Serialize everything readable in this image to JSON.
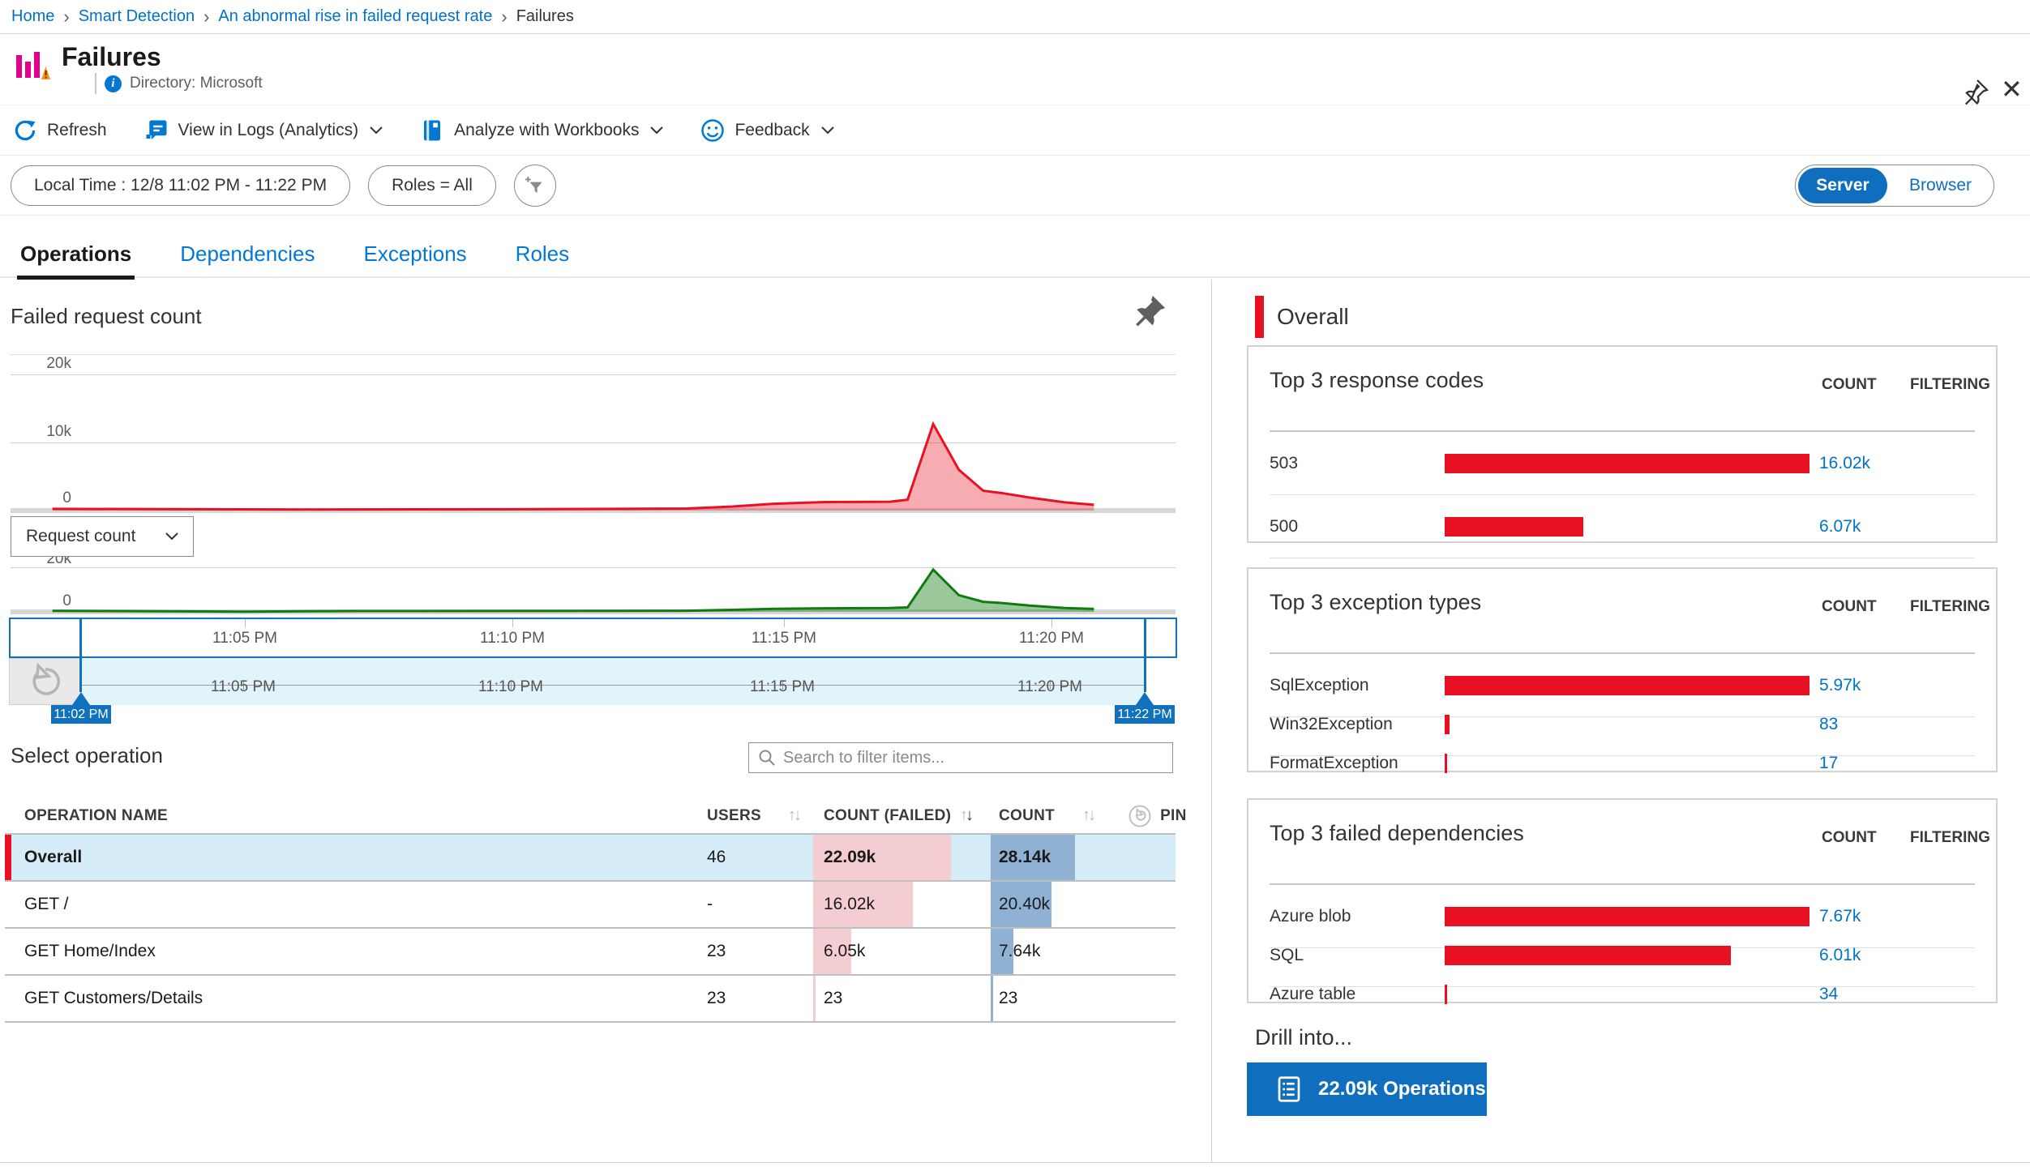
{
  "breadcrumb": {
    "items": [
      {
        "label": "Home"
      },
      {
        "label": "Smart Detection"
      },
      {
        "label": "An abnormal rise in failed request rate"
      },
      {
        "label": "Failures"
      }
    ]
  },
  "header": {
    "title": "Failures",
    "subtitle": "Directory: Microsoft"
  },
  "toolbar": {
    "refresh": "Refresh",
    "view_logs": "View in Logs (Analytics)",
    "workbooks": "Analyze with Workbooks",
    "feedback": "Feedback"
  },
  "filters": {
    "time": "Local Time : 12/8 11:02 PM - 11:22 PM",
    "roles": "Roles = All"
  },
  "scope_toggle": {
    "server": "Server",
    "browser": "Browser",
    "selected": "Server"
  },
  "tabs": [
    {
      "label": "Operations"
    },
    {
      "label": "Dependencies"
    },
    {
      "label": "Exceptions"
    },
    {
      "label": "Roles"
    }
  ],
  "charts": {
    "failed_title": "Failed request count",
    "metric_dropdown": "Request count",
    "y_top": "20k",
    "y_mid": "10k",
    "y_zero": "0",
    "time_axis": [
      "11:05 PM",
      "11:10 PM",
      "11:15 PM",
      "11:20 PM"
    ],
    "brush": {
      "start": "11:02 PM",
      "end": "11:22 PM"
    }
  },
  "chart_data": [
    {
      "type": "area",
      "name": "Failed request count",
      "color": "#e81123",
      "fill": "rgba(232,17,35,0.35)",
      "x_range": [
        "11:02 PM",
        "11:22 PM"
      ],
      "ylim": [
        0,
        25000
      ],
      "points": [
        [
          0.036,
          250
        ],
        [
          0.25,
          150
        ],
        [
          0.45,
          200
        ],
        [
          0.58,
          300
        ],
        [
          0.62,
          600
        ],
        [
          0.655,
          1000
        ],
        [
          0.7,
          1250
        ],
        [
          0.755,
          1300
        ],
        [
          0.77,
          1600
        ],
        [
          0.792,
          12700
        ],
        [
          0.814,
          6000
        ],
        [
          0.835,
          2900
        ],
        [
          0.85,
          2600
        ],
        [
          0.875,
          1900
        ],
        [
          0.905,
          1200
        ],
        [
          0.93,
          850
        ]
      ]
    },
    {
      "type": "area",
      "name": "Request count",
      "color": "#107c10",
      "fill": "rgba(16,124,16,0.42)",
      "x_range": [
        "11:02 PM",
        "11:22 PM"
      ],
      "ylim": [
        0,
        22000
      ],
      "points": [
        [
          0.036,
          450
        ],
        [
          0.2,
          120
        ],
        [
          0.3,
          350
        ],
        [
          0.45,
          400
        ],
        [
          0.58,
          500
        ],
        [
          0.62,
          900
        ],
        [
          0.655,
          1400
        ],
        [
          0.7,
          1600
        ],
        [
          0.755,
          1700
        ],
        [
          0.77,
          2000
        ],
        [
          0.792,
          19000
        ],
        [
          0.814,
          7500
        ],
        [
          0.835,
          4500
        ],
        [
          0.85,
          4000
        ],
        [
          0.875,
          2800
        ],
        [
          0.905,
          1700
        ],
        [
          0.93,
          1300
        ]
      ]
    }
  ],
  "operations": {
    "section_title": "Select operation",
    "search_placeholder": "Search to filter items...",
    "columns": {
      "name": "OPERATION NAME",
      "users": "USERS",
      "failed": "COUNT (FAILED)",
      "count": "COUNT",
      "pin": "PIN"
    },
    "failed_max": 22090,
    "count_max": 28140,
    "rows": [
      {
        "name": "Overall",
        "users": "46",
        "failed": "22.09k",
        "failed_value": 22090,
        "count": "28.14k",
        "count_value": 28140
      },
      {
        "name": "GET /",
        "users": "-",
        "failed": "16.02k",
        "failed_value": 16020,
        "count": "20.40k",
        "count_value": 20400
      },
      {
        "name": "GET Home/Index",
        "users": "23",
        "failed": "6.05k",
        "failed_value": 6050,
        "count": "7.64k",
        "count_value": 7640
      },
      {
        "name": "GET Customers/Details",
        "users": "23",
        "failed": "23",
        "failed_value": 23,
        "count": "23",
        "count_value": 23
      }
    ]
  },
  "right_panel": {
    "overall_label": "Overall",
    "count_header": "COUNT",
    "filtering_header": "FILTERING",
    "cards": [
      {
        "title": "Top 3 response codes",
        "max": 16020,
        "rows": [
          {
            "label": "503",
            "count": "16.02k",
            "value": 16020
          },
          {
            "label": "500",
            "count": "6.07k",
            "value": 6070
          }
        ]
      },
      {
        "title": "Top 3 exception types",
        "max": 5970,
        "rows": [
          {
            "label": "SqlException",
            "count": "5.97k",
            "value": 5970
          },
          {
            "label": "Win32Exception",
            "count": "83",
            "value": 83
          },
          {
            "label": "FormatException",
            "count": "17",
            "value": 17
          }
        ]
      },
      {
        "title": "Top 3 failed dependencies",
        "max": 7670,
        "rows": [
          {
            "label": "Azure blob",
            "count": "7.67k",
            "value": 7670
          },
          {
            "label": "SQL",
            "count": "6.01k",
            "value": 6010
          },
          {
            "label": "Azure table",
            "count": "34",
            "value": 34
          }
        ]
      }
    ],
    "drill_into": "Drill into...",
    "drill_button": "22.09k Operations"
  },
  "colors": {
    "brand_blue": "#0078d4",
    "toggle_blue": "#106ebe",
    "link_blue": "#0072c6",
    "red": "#e81123",
    "green": "#107c10",
    "bar_pink": "#f4cdd3",
    "bar_blue": "#8fb2d4",
    "selected_row": "#d7ecf9",
    "brush_blue": "#1071bc"
  }
}
